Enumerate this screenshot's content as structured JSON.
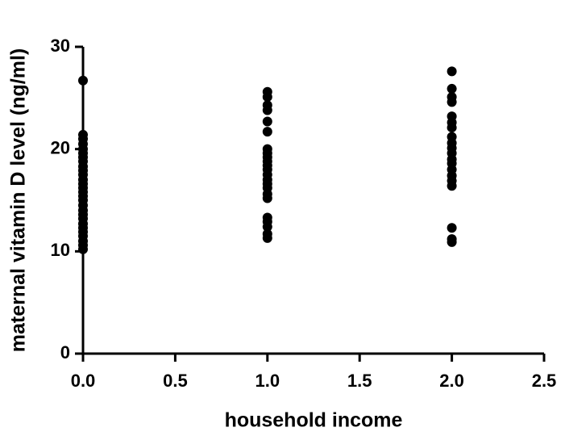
{
  "chart_data": {
    "type": "scatter",
    "x_label": "household income",
    "y_label": "maternal vitamin D level (ng/ml)",
    "xlim": [
      0,
      2.5
    ],
    "ylim": [
      0,
      30
    ],
    "xticks": [
      {
        "value": 0,
        "label": "0.0"
      },
      {
        "value": 0.5,
        "label": "0.5"
      },
      {
        "value": 1,
        "label": "1.0"
      },
      {
        "value": 1.5,
        "label": "1.5"
      },
      {
        "value": 2,
        "label": "2.0"
      },
      {
        "value": 2.5,
        "label": "2.5"
      }
    ],
    "yticks": [
      0,
      10,
      20,
      30
    ],
    "color": "#000000",
    "series": [
      {
        "x": [
          0,
          0,
          0,
          0,
          0,
          0,
          0,
          0,
          0,
          0,
          0,
          0,
          0,
          0,
          0,
          0,
          0,
          0,
          0,
          0,
          0,
          0,
          0,
          0,
          0,
          0,
          0,
          0,
          1,
          1,
          1,
          1,
          1,
          1,
          1,
          1,
          1,
          1,
          1,
          1,
          1,
          1,
          1,
          1,
          1,
          1,
          1,
          1,
          1,
          1,
          1,
          2,
          2,
          2,
          2,
          2,
          2,
          2,
          2,
          2,
          2,
          2,
          2,
          2,
          2,
          2,
          2,
          2,
          2,
          2,
          2
        ],
        "values": [
          26.7,
          21.4,
          21.0,
          20.5,
          20.0,
          19.6,
          19.2,
          18.8,
          18.3,
          17.9,
          17.5,
          17.0,
          16.6,
          16.2,
          15.8,
          15.4,
          15.0,
          14.5,
          14.0,
          13.6,
          13.2,
          12.7,
          12.3,
          11.9,
          11.5,
          11.0,
          10.6,
          10.2,
          25.6,
          25.1,
          24.3,
          23.8,
          22.7,
          21.7,
          20.0,
          19.6,
          19.2,
          18.8,
          18.4,
          18.0,
          17.5,
          17.0,
          16.6,
          16.2,
          15.6,
          15.2,
          13.3,
          12.9,
          12.4,
          11.7,
          11.3,
          27.6,
          25.9,
          25.1,
          24.6,
          23.2,
          22.6,
          22.1,
          21.2,
          20.6,
          20.1,
          19.6,
          19.0,
          18.6,
          18.0,
          17.4,
          16.9,
          16.4,
          12.3,
          11.2,
          10.9
        ]
      }
    ]
  }
}
